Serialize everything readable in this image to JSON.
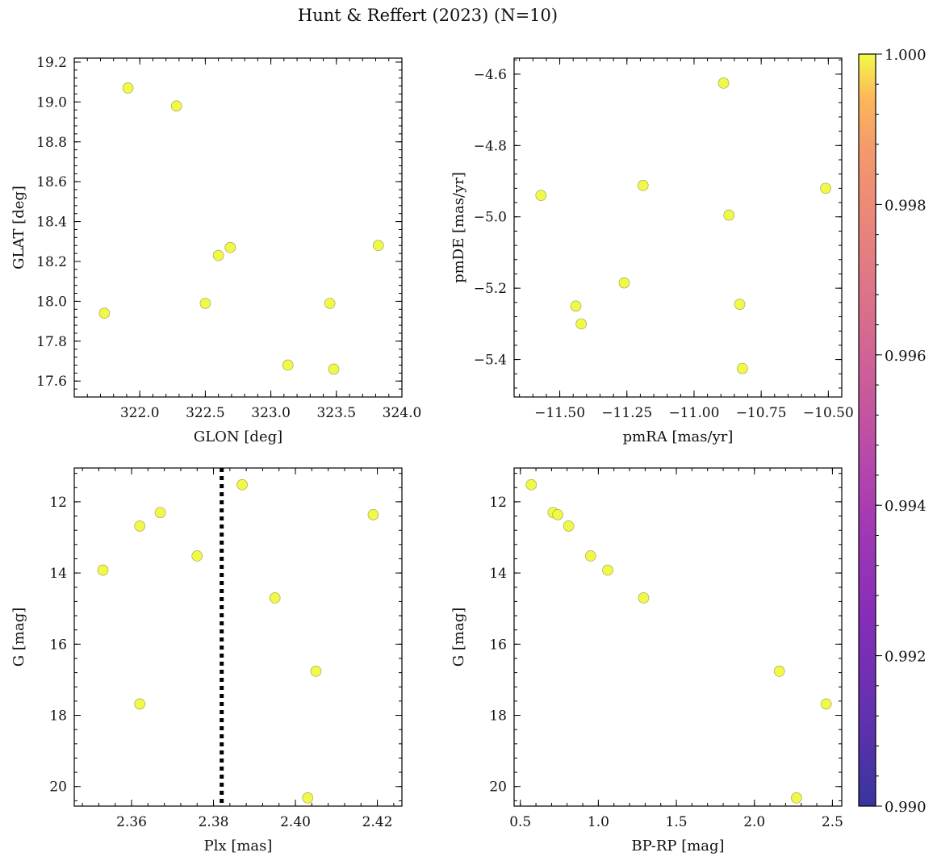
{
  "figure": {
    "title": "Hunt & Reffert (2023) (N=10)"
  },
  "colorbar": {
    "min": 0.99,
    "max": 1.0,
    "colormap": "plasma",
    "ticks": [
      0.99,
      0.992,
      0.994,
      0.996,
      0.998,
      1.0
    ],
    "tick_labels": [
      "0.990",
      "0.992",
      "0.994",
      "0.996",
      "0.998",
      "1.000"
    ]
  },
  "marker_color": "#f0f94a",
  "chart_data": [
    {
      "type": "scatter",
      "xlabel": "GLON [deg]",
      "ylabel": "GLAT [deg]",
      "xlim": [
        321.5,
        324.0
      ],
      "ylim": [
        17.52,
        19.22
      ],
      "invert_y": false,
      "xticks": [
        322.0,
        322.5,
        323.0,
        323.5,
        324.0
      ],
      "xtick_labels": [
        "322.0",
        "322.5",
        "323.0",
        "323.5",
        "324.0"
      ],
      "xminor": 0.1,
      "yticks": [
        17.6,
        17.8,
        18.0,
        18.2,
        18.4,
        18.6,
        18.8,
        19.0,
        19.2
      ],
      "ytick_labels": [
        "17.6",
        "17.8",
        "18.0",
        "18.2",
        "18.4",
        "18.6",
        "18.8",
        "19.0",
        "19.2"
      ],
      "yminor": 0.04,
      "points": [
        {
          "x": 321.73,
          "y": 17.94
        },
        {
          "x": 321.91,
          "y": 19.07
        },
        {
          "x": 322.28,
          "y": 18.98
        },
        {
          "x": 322.5,
          "y": 17.99
        },
        {
          "x": 322.6,
          "y": 18.23
        },
        {
          "x": 322.69,
          "y": 18.27
        },
        {
          "x": 323.13,
          "y": 17.68
        },
        {
          "x": 323.45,
          "y": 17.99
        },
        {
          "x": 323.48,
          "y": 17.66
        },
        {
          "x": 323.82,
          "y": 18.28
        }
      ]
    },
    {
      "type": "scatter",
      "xlabel": "pmRA [mas/yr]",
      "ylabel": "pmDE [mas/yr]",
      "xlim": [
        -11.67,
        -10.45
      ],
      "ylim": [
        -5.505,
        -4.555
      ],
      "invert_y": false,
      "xticks": [
        -11.5,
        -11.25,
        -11.0,
        -10.75,
        -10.5
      ],
      "xtick_labels": [
        "−11.50",
        "−11.25",
        "−11.00",
        "−10.75",
        "−10.50"
      ],
      "xminor": 0.05,
      "yticks": [
        -5.4,
        -5.2,
        -5.0,
        -4.8,
        -4.6
      ],
      "ytick_labels": [
        "−5.4",
        "−5.2",
        "−5.0",
        "−4.8",
        "−4.6"
      ],
      "yminor": 0.04,
      "points": [
        {
          "x": -11.57,
          "y": -4.94
        },
        {
          "x": -11.44,
          "y": -5.25
        },
        {
          "x": -11.42,
          "y": -5.3
        },
        {
          "x": -11.26,
          "y": -5.185
        },
        {
          "x": -11.19,
          "y": -4.912
        },
        {
          "x": -10.89,
          "y": -4.625
        },
        {
          "x": -10.87,
          "y": -4.995
        },
        {
          "x": -10.83,
          "y": -5.245
        },
        {
          "x": -10.82,
          "y": -5.425
        },
        {
          "x": -10.51,
          "y": -4.92
        }
      ]
    },
    {
      "type": "scatter",
      "xlabel": "Plx [mas]",
      "ylabel": "G [mag]",
      "xlim": [
        2.346,
        2.426
      ],
      "ylim": [
        11.05,
        20.55
      ],
      "invert_y": true,
      "xticks": [
        2.36,
        2.38,
        2.4,
        2.42
      ],
      "xtick_labels": [
        "2.36",
        "2.38",
        "2.40",
        "2.42"
      ],
      "xminor": 0.004,
      "yticks": [
        12,
        14,
        16,
        18,
        20
      ],
      "ytick_labels": [
        "12",
        "14",
        "16",
        "18",
        "20"
      ],
      "yminor": 0.4,
      "vline": {
        "x": 2.382,
        "style": "dotted"
      },
      "points": [
        {
          "x": 2.353,
          "y": 13.92
        },
        {
          "x": 2.362,
          "y": 12.68
        },
        {
          "x": 2.362,
          "y": 17.68
        },
        {
          "x": 2.367,
          "y": 12.3
        },
        {
          "x": 2.376,
          "y": 13.52
        },
        {
          "x": 2.387,
          "y": 11.52
        },
        {
          "x": 2.395,
          "y": 14.7
        },
        {
          "x": 2.403,
          "y": 20.32
        },
        {
          "x": 2.405,
          "y": 16.76
        },
        {
          "x": 2.419,
          "y": 12.36
        }
      ]
    },
    {
      "type": "scatter",
      "xlabel": "BP-RP [mag]",
      "ylabel": "G [mag]",
      "xlim": [
        0.46,
        2.56
      ],
      "ylim": [
        11.05,
        20.55
      ],
      "invert_y": true,
      "xticks": [
        0.5,
        1.0,
        1.5,
        2.0,
        2.5
      ],
      "xtick_labels": [
        "0.5",
        "1.0",
        "1.5",
        "2.0",
        "2.5"
      ],
      "xminor": 0.1,
      "yticks": [
        12,
        14,
        16,
        18,
        20
      ],
      "ytick_labels": [
        "12",
        "14",
        "16",
        "18",
        "20"
      ],
      "yminor": 0.4,
      "points": [
        {
          "x": 0.57,
          "y": 11.52
        },
        {
          "x": 0.71,
          "y": 12.3
        },
        {
          "x": 0.74,
          "y": 12.36
        },
        {
          "x": 0.81,
          "y": 12.68
        },
        {
          "x": 0.95,
          "y": 13.52
        },
        {
          "x": 1.06,
          "y": 13.92
        },
        {
          "x": 1.29,
          "y": 14.7
        },
        {
          "x": 2.16,
          "y": 16.76
        },
        {
          "x": 2.27,
          "y": 20.32
        },
        {
          "x": 2.46,
          "y": 17.68
        }
      ]
    }
  ]
}
